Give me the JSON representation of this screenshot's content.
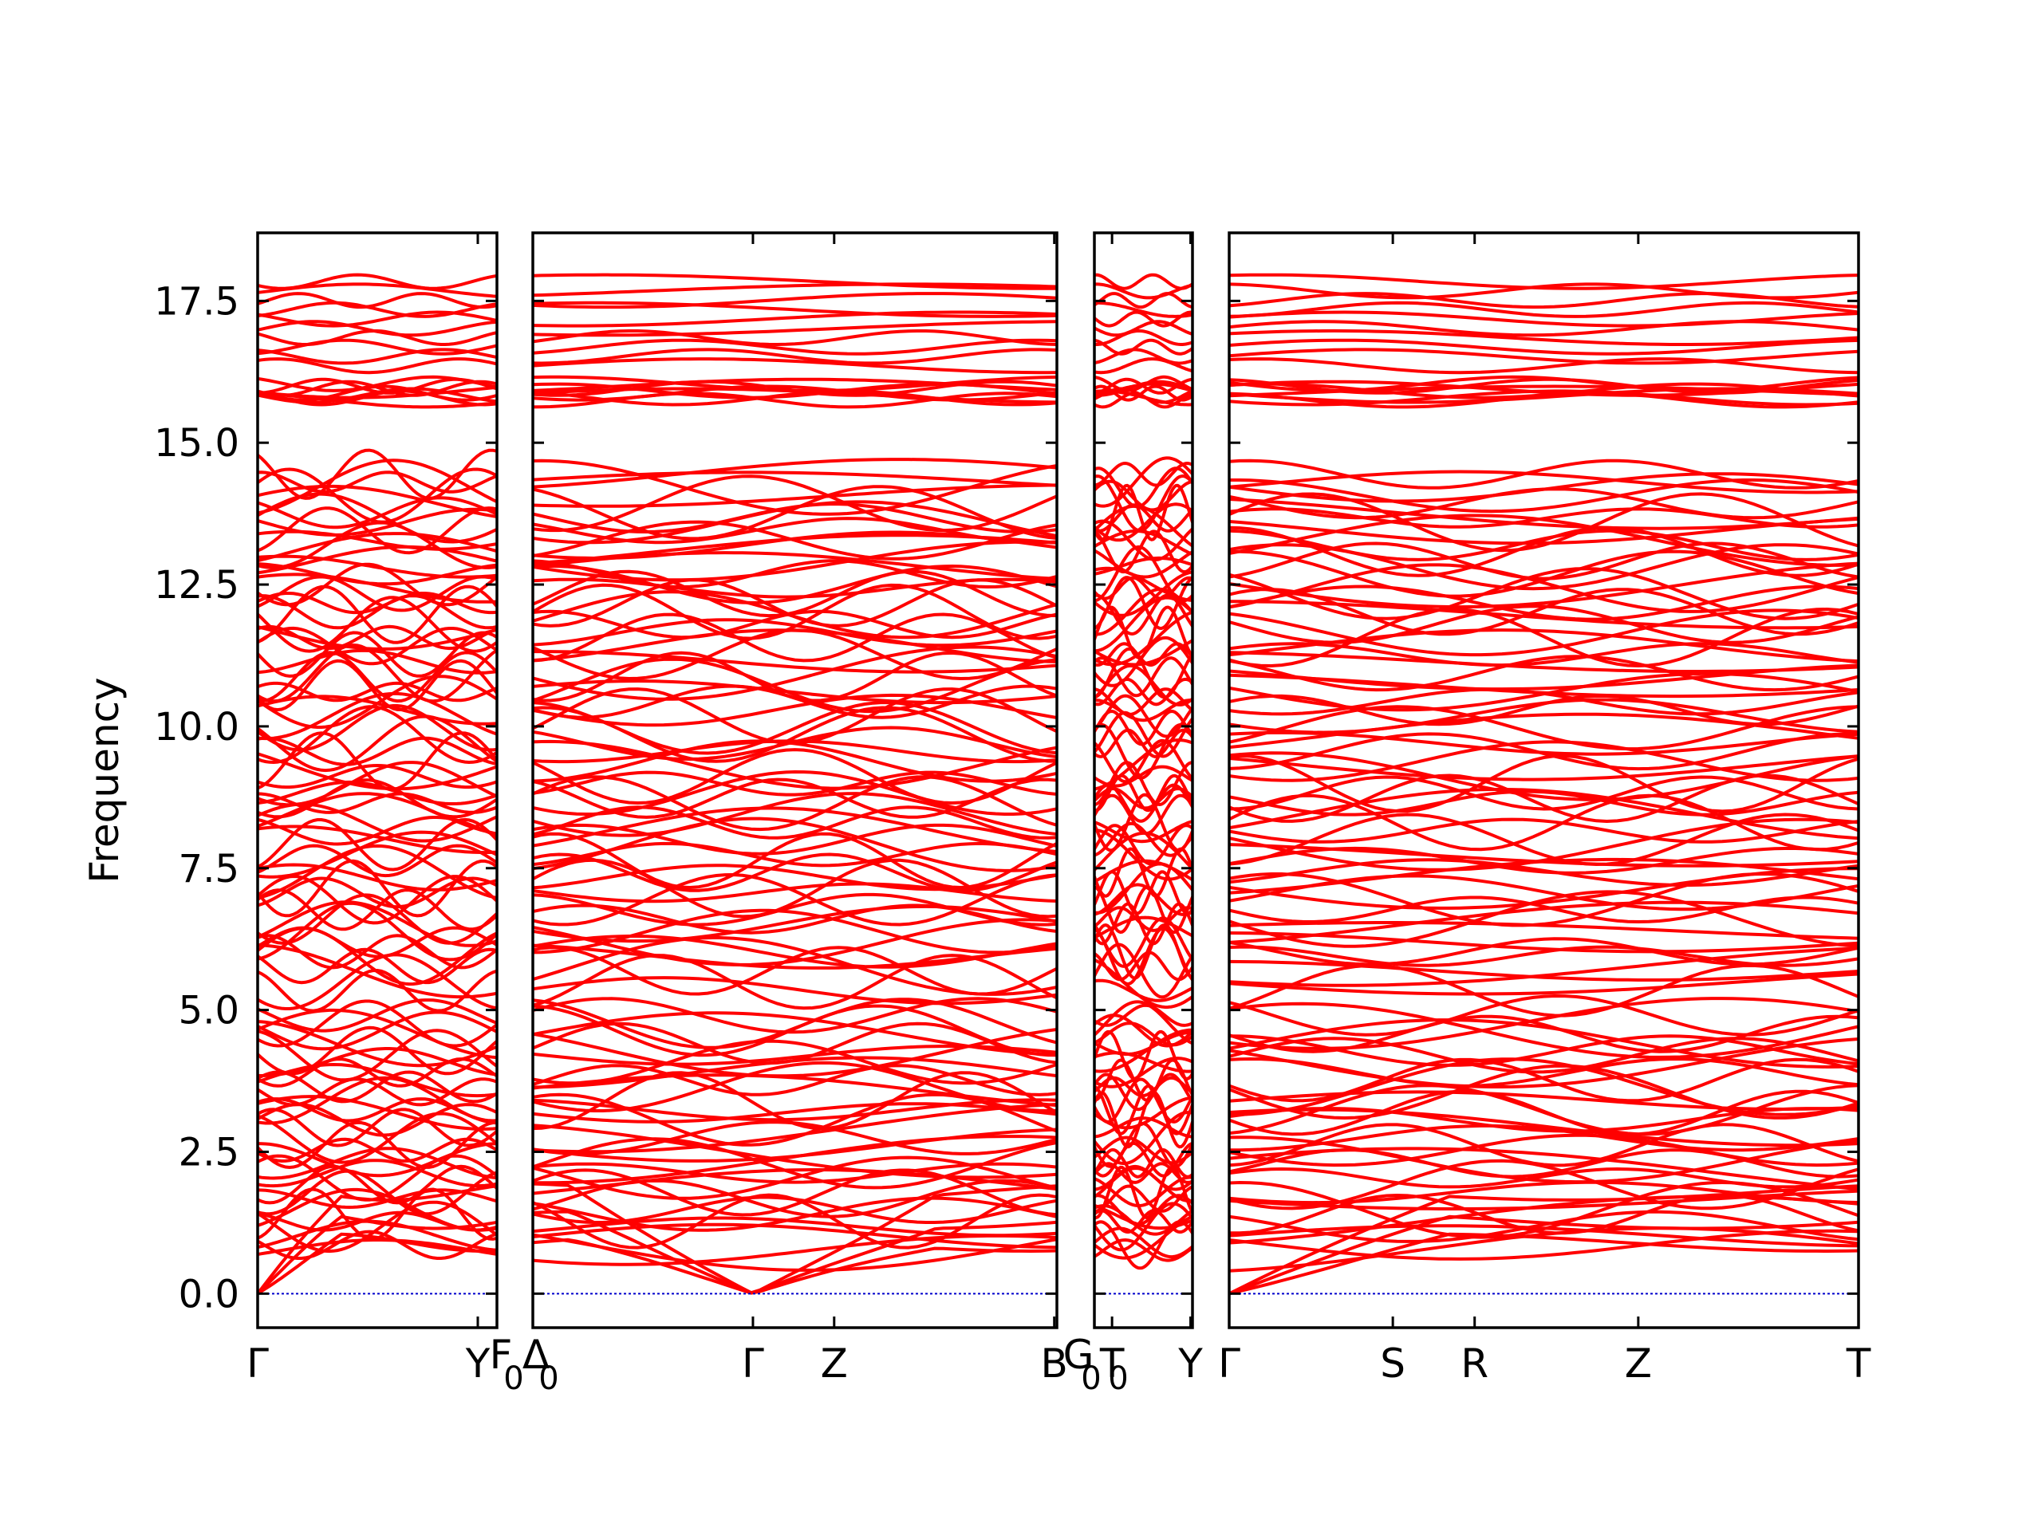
{
  "chart_data": {
    "type": "line",
    "title": "",
    "ylabel": "Frequency",
    "xlabel": "",
    "ylim": [
      -0.6,
      18.7
    ],
    "yticks": [
      0.0,
      2.5,
      5.0,
      7.5,
      10.0,
      12.5,
      15.0,
      17.5
    ],
    "ytick_labels": [
      "0.0",
      "2.5",
      "5.0",
      "7.5",
      "10.0",
      "12.5",
      "15.0",
      "17.5"
    ],
    "grid": false,
    "line_color": "#ff0000",
    "zero_line_color": "#0000cc",
    "n_bands_per_panel": 120,
    "panels": [
      {
        "x_range": [
          0,
          1
        ],
        "tick_positions": [
          0,
          0.92
        ],
        "tick_labels": [
          "Γ",
          "Y"
        ],
        "band_anchors": [
          0,
          0.92,
          1
        ],
        "acoustic_min_at": [
          0
        ]
      },
      {
        "x_range": [
          0,
          1
        ],
        "tick_positions": [
          0.42,
          0.575,
          0.995
        ],
        "tick_labels": [
          "Γ",
          "Z",
          "B"
        ],
        "band_anchors": [
          0,
          0.42,
          0.575,
          0.995,
          1
        ],
        "acoustic_min_at": [
          0.42
        ]
      },
      {
        "x_range": [
          0,
          1
        ],
        "tick_positions": [
          0.18,
          0.98
        ],
        "tick_labels": [
          "T",
          "Y"
        ],
        "band_anchors": [
          0,
          0.18,
          0.98
        ],
        "acoustic_min_at": []
      },
      {
        "x_range": [
          0,
          1
        ],
        "tick_positions": [
          0,
          0.26,
          0.39,
          0.65,
          1.0
        ],
        "tick_labels": [
          "Γ",
          "S",
          "R",
          "Z",
          "T"
        ],
        "band_anchors": [
          0,
          0.26,
          0.39,
          0.65,
          1.0
        ],
        "acoustic_min_at": [
          0
        ]
      }
    ],
    "subscript_labels": [
      {
        "text": "F",
        "sub": "0"
      },
      {
        "text": "Δ",
        "sub": "0"
      },
      {
        "text": "G",
        "sub": "0"
      },
      {
        "text": "",
        "sub": "0"
      }
    ],
    "frequency_bands": {
      "acoustic_branches": 3,
      "optical_low_range": [
        0.7,
        5.0
      ],
      "optical_mid_range": [
        5.3,
        11.5
      ],
      "optical_high_range": [
        11.5,
        14.5
      ],
      "gap_range": [
        14.5,
        15.7
      ],
      "top_cluster_range": [
        15.7,
        17.9
      ]
    }
  }
}
